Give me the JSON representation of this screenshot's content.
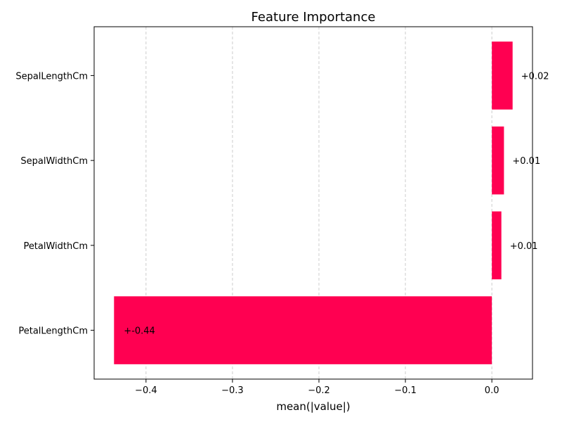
{
  "chart_data": {
    "type": "bar",
    "orientation": "horizontal",
    "title": "Feature Importance",
    "xlabel": "mean(|value|)",
    "ylabel": "",
    "categories": [
      "SepalLengthCm",
      "SepalWidthCm",
      "PetalWidthCm",
      "PetalLengthCm"
    ],
    "values": [
      0.024,
      0.014,
      0.011,
      -0.437
    ],
    "value_labels": [
      "+0.02",
      "+0.01",
      "+0.01",
      "+-0.44"
    ],
    "xlim": [
      -0.46,
      0.047
    ],
    "xticks": [
      -0.4,
      -0.3,
      -0.2,
      -0.1,
      0.0
    ],
    "xtick_labels": [
      "−0.4",
      "−0.3",
      "−0.2",
      "−0.1",
      "0.0"
    ],
    "grid": "x-dashed",
    "bar_color": "#ff0051"
  }
}
